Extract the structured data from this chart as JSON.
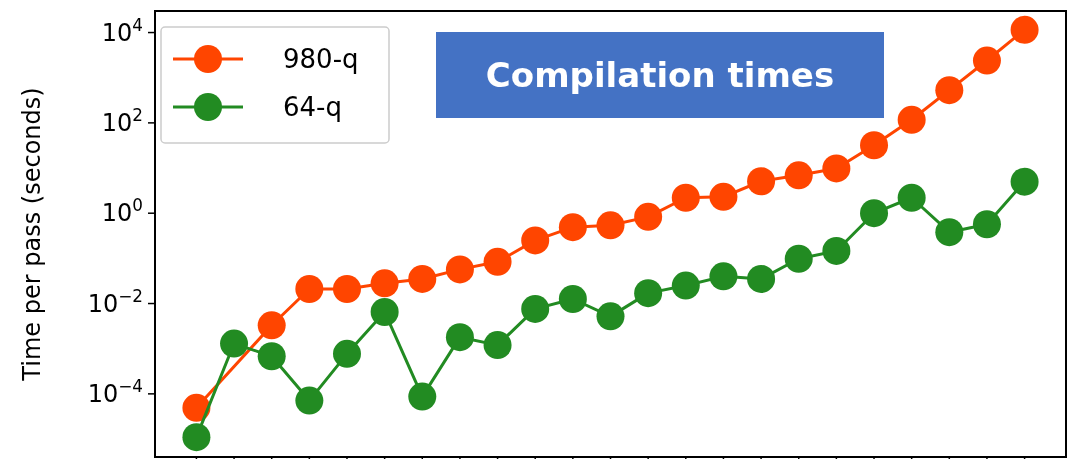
{
  "chart_data": {
    "type": "line",
    "title": "Compilation times",
    "ylabel": "Time per pass (seconds)",
    "categories": [
      null,
      null,
      null,
      null,
      null,
      null,
      null,
      null,
      null,
      null,
      null,
      null,
      null,
      null,
      null,
      null,
      null,
      null,
      null,
      null,
      null,
      null,
      null
    ],
    "series": [
      {
        "name": "980-q",
        "color": "#ff4500",
        "values": [
          4.9e-05,
          null,
          0.0033,
          0.021,
          0.021,
          0.028,
          0.035,
          0.057,
          0.084,
          0.25,
          0.49,
          0.54,
          0.83,
          2.2,
          2.3,
          5.1,
          6.9,
          9.8,
          32,
          117,
          530,
          2400,
          11500
        ]
      },
      {
        "name": "64-q",
        "color": "#228b22",
        "values": [
          1.1e-05,
          0.0013,
          0.00068,
          7.1e-05,
          0.00077,
          0.0065,
          8.7e-05,
          0.0018,
          0.0012,
          0.0076,
          0.0126,
          0.0052,
          0.017,
          0.025,
          0.04,
          0.035,
          0.098,
          0.146,
          1.0,
          2.2,
          0.38,
          0.57,
          5.0
        ]
      }
    ],
    "log": "y",
    "ylim": [
      4e-06,
      30000
    ],
    "yticks": [
      {
        "value": 0.0001,
        "label": "10$^{−4}$"
      },
      {
        "value": 0.01,
        "label": "10$^{−2}$"
      },
      {
        "value": 1,
        "label": "10$^{0}$"
      },
      {
        "value": 100,
        "label": "10$^{2}$"
      },
      {
        "value": 10000,
        "label": "10$^{4}$"
      }
    ],
    "legend": "top left",
    "marker": "circle",
    "line_style": "solid",
    "grid": false
  }
}
